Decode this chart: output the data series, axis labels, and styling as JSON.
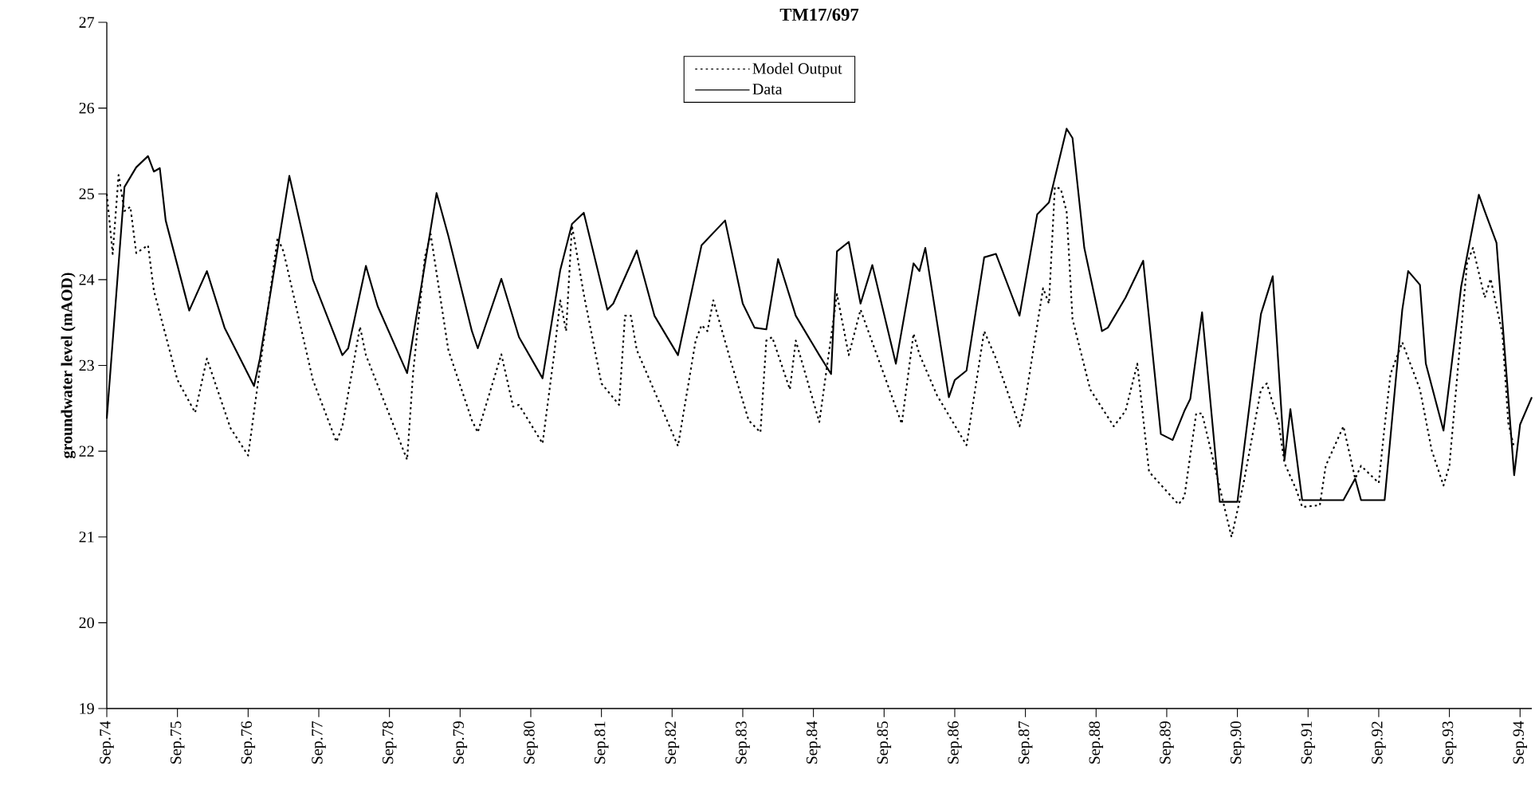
{
  "chart_data": {
    "type": "line",
    "title": "TM17/697",
    "ylabel": "groundwater level (mAOD)",
    "legend": "top",
    "xlim": [
      "1974-09",
      "1994-11"
    ],
    "xticks": [
      {
        "value": "1974-09",
        "label": "Sep.74"
      },
      {
        "value": "1975-09",
        "label": "Sep.75"
      },
      {
        "value": "1976-09",
        "label": "Sep.76"
      },
      {
        "value": "1977-09",
        "label": "Sep.77"
      },
      {
        "value": "1978-09",
        "label": "Sep.78"
      },
      {
        "value": "1979-09",
        "label": "Sep.79"
      },
      {
        "value": "1980-09",
        "label": "Sep.80"
      },
      {
        "value": "1981-09",
        "label": "Sep.81"
      },
      {
        "value": "1982-09",
        "label": "Sep.82"
      },
      {
        "value": "1983-09",
        "label": "Sep.83"
      },
      {
        "value": "1984-09",
        "label": "Sep.84"
      },
      {
        "value": "1985-09",
        "label": "Sep.85"
      },
      {
        "value": "1986-09",
        "label": "Sep.86"
      },
      {
        "value": "1987-09",
        "label": "Sep.87"
      },
      {
        "value": "1988-09",
        "label": "Sep.88"
      },
      {
        "value": "1989-09",
        "label": "Sep.89"
      },
      {
        "value": "1990-09",
        "label": "Sep.90"
      },
      {
        "value": "1991-09",
        "label": "Sep.91"
      },
      {
        "value": "1992-09",
        "label": "Sep.92"
      },
      {
        "value": "1993-09",
        "label": "Sep.93"
      },
      {
        "value": "1994-09",
        "label": "Sep.94"
      }
    ],
    "ylim": [
      19,
      27
    ],
    "yticks": [
      19,
      20,
      21,
      22,
      23,
      24,
      25,
      26,
      27
    ],
    "series": [
      {
        "name": "Model Output",
        "color": "#000000",
        "line_style": "dotted",
        "x": [
          "1974-09",
          "1974-10",
          "1974-11",
          "1974-12",
          "1975-01",
          "1975-02",
          "1975-04",
          "1975-05",
          "1975-09",
          "1975-12",
          "1976-02",
          "1976-06",
          "1976-09",
          "1977-02",
          "1977-03",
          "1977-08",
          "1977-12",
          "1978-01",
          "1978-04",
          "1978-05",
          "1978-12",
          "1979-01",
          "1979-03",
          "1979-04",
          "1979-07",
          "1979-11",
          "1979-12",
          "1980-04",
          "1980-06",
          "1980-07",
          "1980-11",
          "1981-01",
          "1981-02",
          "1981-03",
          "1981-04",
          "1981-06",
          "1981-09",
          "1981-12",
          "1982-01",
          "1982-02",
          "1982-03",
          "1982-10",
          "1983-01",
          "1983-02",
          "1983-03",
          "1983-04",
          "1983-07",
          "1983-10",
          "1983-12",
          "1984-01",
          "1984-02",
          "1984-05",
          "1984-06",
          "1984-10",
          "1985-01",
          "1985-03",
          "1985-05",
          "1985-12",
          "1986-02",
          "1986-03",
          "1986-06",
          "1986-11",
          "1987-02",
          "1987-04",
          "1987-08",
          "1987-09",
          "1987-12",
          "1988-01",
          "1988-02",
          "1988-03",
          "1988-04",
          "1988-05",
          "1988-08",
          "1988-12",
          "1989-02",
          "1989-04",
          "1989-06",
          "1989-11",
          "1989-12",
          "1990-02",
          "1990-03",
          "1990-08",
          "1990-10",
          "1991-01",
          "1991-02",
          "1991-04",
          "1991-05",
          "1991-07",
          "1991-08",
          "1991-11",
          "1991-12",
          "1992-03",
          "1992-05",
          "1992-06",
          "1992-09",
          "1992-10",
          "1992-11",
          "1993-01",
          "1993-04",
          "1993-06",
          "1993-08",
          "1993-09",
          "1993-12",
          "1994-01",
          "1994-03",
          "1994-04",
          "1994-06",
          "1994-07",
          "1994-08"
        ],
        "values": [
          25.0,
          24.3,
          25.22,
          24.8,
          24.85,
          24.31,
          24.4,
          23.87,
          22.83,
          22.45,
          23.08,
          22.27,
          21.95,
          24.49,
          24.33,
          22.83,
          22.11,
          22.29,
          23.45,
          23.12,
          21.9,
          22.9,
          24.26,
          24.53,
          23.18,
          22.36,
          22.22,
          23.13,
          22.52,
          22.54,
          22.09,
          23.15,
          23.76,
          23.4,
          24.63,
          23.83,
          22.79,
          22.54,
          23.58,
          23.58,
          23.18,
          22.06,
          23.29,
          23.47,
          23.4,
          23.76,
          23.04,
          22.36,
          22.22,
          23.29,
          23.33,
          22.72,
          23.29,
          22.34,
          23.83,
          23.12,
          23.65,
          22.32,
          23.37,
          23.13,
          22.65,
          22.07,
          23.4,
          23.08,
          22.29,
          22.6,
          23.9,
          23.72,
          25.08,
          25.06,
          24.79,
          23.54,
          22.72,
          22.29,
          22.47,
          23.02,
          21.76,
          21.38,
          21.47,
          22.44,
          22.44,
          21.0,
          21.61,
          22.72,
          22.79,
          22.33,
          21.86,
          21.55,
          21.35,
          21.37,
          21.83,
          22.29,
          21.68,
          21.83,
          21.63,
          22.29,
          22.9,
          23.27,
          22.72,
          22.01,
          21.6,
          21.83,
          24.19,
          24.37,
          23.79,
          24.01,
          23.37,
          22.33,
          22.04
        ]
      },
      {
        "name": "Data",
        "color": "#000000",
        "line_style": "solid",
        "x": [
          "1974-09",
          "1974-12",
          "1975-02",
          "1975-04",
          "1975-05",
          "1975-06",
          "1975-07",
          "1975-11",
          "1976-02",
          "1976-05",
          "1976-10",
          "1976-11",
          "1977-04",
          "1977-08",
          "1978-01",
          "1978-02",
          "1978-05",
          "1978-07",
          "1978-12",
          "1979-05",
          "1979-07",
          "1979-11",
          "1979-12",
          "1980-04",
          "1980-07",
          "1980-11",
          "1981-02",
          "1981-04",
          "1981-06",
          "1981-10",
          "1981-11",
          "1982-03",
          "1982-06",
          "1982-10",
          "1983-02",
          "1983-06",
          "1983-09",
          "1983-11",
          "1984-01",
          "1984-03",
          "1984-06",
          "1984-10",
          "1984-12",
          "1985-01",
          "1985-03",
          "1985-05",
          "1985-07",
          "1985-11",
          "1986-02",
          "1986-03",
          "1986-04",
          "1986-08",
          "1986-09",
          "1986-11",
          "1987-02",
          "1987-04",
          "1987-08",
          "1987-11",
          "1988-01",
          "1988-04",
          "1988-05",
          "1988-07",
          "1988-10",
          "1988-11",
          "1989-02",
          "1989-05",
          "1989-08",
          "1989-10",
          "1989-12",
          "1990-01",
          "1990-03",
          "1990-06",
          "1990-09",
          "1991-01",
          "1991-03",
          "1991-05",
          "1991-06",
          "1991-08",
          "1992-03",
          "1992-05",
          "1992-06",
          "1992-10",
          "1993-01",
          "1993-02",
          "1993-04",
          "1993-05",
          "1993-08",
          "1993-11",
          "1994-02",
          "1994-03",
          "1994-05",
          "1994-08",
          "1994-09",
          "1994-11"
        ],
        "values": [
          22.38,
          25.08,
          25.31,
          25.44,
          25.26,
          25.3,
          24.69,
          23.64,
          24.1,
          23.44,
          22.76,
          23.08,
          25.21,
          24.0,
          23.12,
          23.2,
          24.16,
          23.69,
          22.91,
          25.01,
          24.51,
          23.4,
          23.2,
          24.01,
          23.33,
          22.85,
          24.11,
          24.65,
          24.78,
          23.65,
          23.72,
          24.34,
          23.58,
          23.12,
          24.4,
          24.69,
          23.72,
          23.44,
          23.42,
          24.24,
          23.58,
          23.12,
          22.9,
          24.33,
          24.44,
          23.72,
          24.17,
          23.02,
          24.19,
          24.1,
          24.37,
          22.63,
          22.83,
          22.94,
          24.26,
          24.3,
          23.58,
          24.76,
          24.9,
          25.76,
          25.65,
          24.37,
          23.4,
          23.44,
          23.79,
          24.22,
          22.2,
          22.13,
          22.47,
          22.61,
          23.62,
          21.41,
          21.41,
          23.6,
          24.04,
          21.9,
          22.49,
          21.43,
          21.43,
          21.68,
          21.43,
          21.43,
          23.65,
          24.1,
          23.94,
          23.02,
          22.24,
          23.92,
          24.99,
          24.8,
          24.43,
          21.72,
          22.31,
          22.63
        ]
      }
    ]
  }
}
